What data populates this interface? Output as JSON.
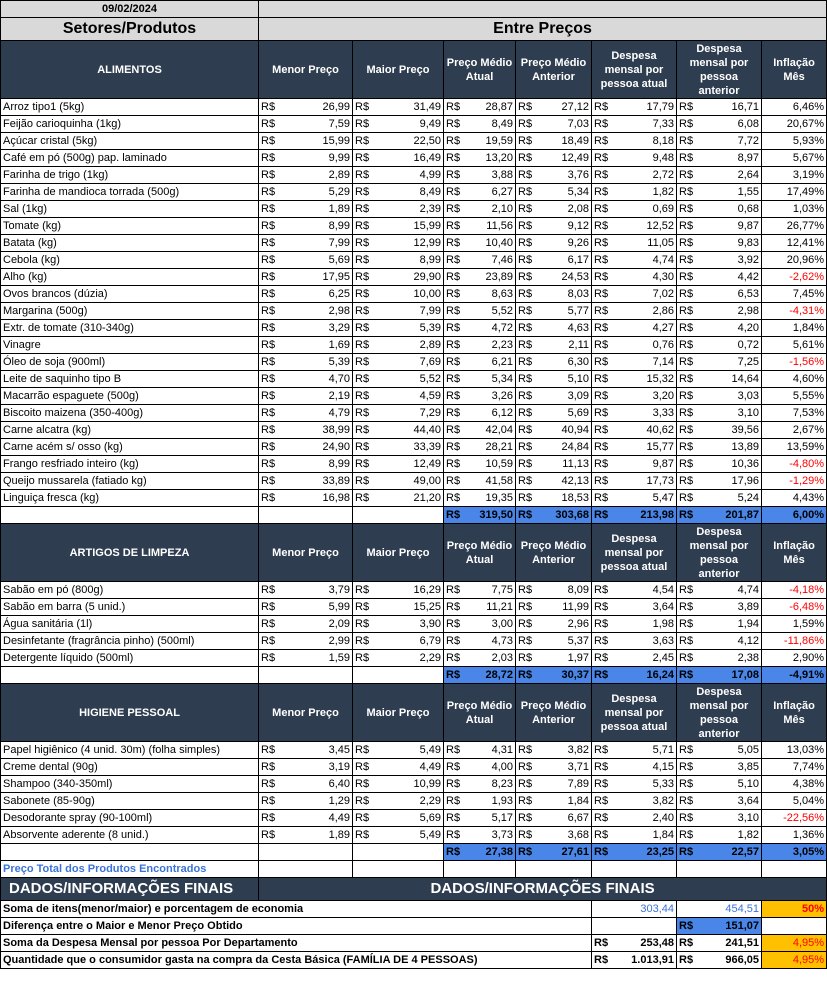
{
  "date": "09/02/2024",
  "titles": {
    "left": "Setores/Produtos",
    "right": "Entre Preços"
  },
  "headers": [
    "Menor Preço",
    "Maior Preço",
    "Preço Médio Atual",
    "Preço Médio Anterior",
    "Despesa mensal por pessoa atual",
    "Despesa mensal por pessoa anterior",
    "Inflação Mês"
  ],
  "currency": "R$",
  "sections": [
    {
      "name": "ALIMENTOS",
      "rows": [
        [
          "Arroz tipo1 (5kg)",
          "26,99",
          "31,49",
          "28,87",
          "27,12",
          "17,79",
          "16,71",
          "6,46%"
        ],
        [
          "Feijão carioquinha (1kg)",
          "7,59",
          "9,49",
          "8,49",
          "7,03",
          "7,33",
          "6,08",
          "20,67%"
        ],
        [
          "Açúcar cristal (5kg)",
          "15,99",
          "22,50",
          "19,59",
          "18,49",
          "8,18",
          "7,72",
          "5,93%"
        ],
        [
          "Café em pó (500g) pap. laminado",
          "9,99",
          "16,49",
          "13,20",
          "12,49",
          "9,48",
          "8,97",
          "5,67%"
        ],
        [
          "Farinha de trigo (1kg)",
          "2,89",
          "4,99",
          "3,88",
          "3,76",
          "2,72",
          "2,64",
          "3,19%"
        ],
        [
          "Farinha de mandioca torrada (500g)",
          "5,29",
          "8,49",
          "6,27",
          "5,34",
          "1,82",
          "1,55",
          "17,49%"
        ],
        [
          "Sal (1kg)",
          "1,89",
          "2,39",
          "2,10",
          "2,08",
          "0,69",
          "0,68",
          "1,03%"
        ],
        [
          "Tomate (kg)",
          "8,99",
          "15,99",
          "11,56",
          "9,12",
          "12,52",
          "9,87",
          "26,77%"
        ],
        [
          "Batata (kg)",
          "7,99",
          "12,99",
          "10,40",
          "9,26",
          "11,05",
          "9,83",
          "12,41%"
        ],
        [
          "Cebola (kg)",
          "5,69",
          "8,99",
          "7,46",
          "6,17",
          "4,74",
          "3,92",
          "20,96%"
        ],
        [
          "Alho (kg)",
          "17,95",
          "29,90",
          "23,89",
          "24,53",
          "4,30",
          "4,42",
          "-2,62%"
        ],
        [
          "Ovos brancos (dúzia)",
          "6,25",
          "10,00",
          "8,63",
          "8,03",
          "7,02",
          "6,53",
          "7,45%"
        ],
        [
          "Margarina (500g)",
          "2,98",
          "7,99",
          "5,52",
          "5,77",
          "2,86",
          "2,98",
          "-4,31%"
        ],
        [
          "Extr. de tomate (310-340g)",
          "3,29",
          "5,39",
          "4,72",
          "4,63",
          "4,27",
          "4,20",
          "1,84%"
        ],
        [
          "Vinagre",
          "1,69",
          "2,89",
          "2,23",
          "2,11",
          "0,76",
          "0,72",
          "5,61%"
        ],
        [
          "Óleo de soja (900ml)",
          "5,39",
          "7,69",
          "6,21",
          "6,30",
          "7,14",
          "7,25",
          "-1,56%"
        ],
        [
          "Leite de saquinho tipo B",
          "4,70",
          "5,52",
          "5,34",
          "5,10",
          "15,32",
          "14,64",
          "4,60%"
        ],
        [
          "Macarrão espaguete (500g)",
          "2,19",
          "4,59",
          "3,26",
          "3,09",
          "3,20",
          "3,03",
          "5,55%"
        ],
        [
          "Biscoito maizena (350-400g)",
          "4,79",
          "7,29",
          "6,12",
          "5,69",
          "3,33",
          "3,10",
          "7,53%"
        ],
        [
          "Carne alcatra (kg)",
          "38,99",
          "44,40",
          "42,04",
          "40,94",
          "40,62",
          "39,56",
          "2,67%"
        ],
        [
          "Carne acém s/ osso (kg)",
          "24,90",
          "33,39",
          "28,21",
          "24,84",
          "15,77",
          "13,89",
          "13,59%"
        ],
        [
          "Frango resfriado inteiro (kg)",
          "8,99",
          "12,49",
          "10,59",
          "11,13",
          "9,87",
          "10,36",
          "-4,80%"
        ],
        [
          "Queijo mussarela (fatiado kg)",
          "33,89",
          "49,00",
          "41,58",
          "42,13",
          "17,73",
          "17,96",
          "-1,29%"
        ],
        [
          "Linguiça fresca (kg)",
          "16,98",
          "21,20",
          "19,35",
          "18,53",
          "5,47",
          "5,24",
          "4,43%"
        ]
      ],
      "totals": [
        "319,50",
        "303,68",
        "213,98",
        "201,87",
        "6,00%"
      ]
    },
    {
      "name": "ARTIGOS DE LIMPEZA",
      "rows": [
        [
          "Sabão em pó (800g)",
          "3,79",
          "16,29",
          "7,75",
          "8,09",
          "4,54",
          "4,74",
          "-4,18%"
        ],
        [
          "Sabão em barra (5 unid.)",
          "5,99",
          "15,25",
          "11,21",
          "11,99",
          "3,64",
          "3,89",
          "-6,48%"
        ],
        [
          "Água sanitária (1l)",
          "2,09",
          "3,90",
          "3,00",
          "2,96",
          "1,98",
          "1,94",
          "1,59%"
        ],
        [
          "Desinfetante (fragrância pinho) (500ml)",
          "2,99",
          "6,79",
          "4,73",
          "5,37",
          "3,63",
          "4,12",
          "-11,86%"
        ],
        [
          "Detergente líquido (500ml)",
          "1,59",
          "2,29",
          "2,03",
          "1,97",
          "2,45",
          "2,38",
          "2,90%"
        ]
      ],
      "totals": [
        "28,72",
        "30,37",
        "16,24",
        "17,08",
        "-4,91%"
      ]
    },
    {
      "name": "HIGIENE PESSOAL",
      "rows": [
        [
          "Papel higiênico (4 unid. 30m) (folha simples)",
          "3,45",
          "5,49",
          "4,31",
          "3,82",
          "5,71",
          "5,05",
          "13,03%"
        ],
        [
          "Creme dental (90g)",
          "3,19",
          "4,49",
          "4,00",
          "3,71",
          "4,15",
          "3,85",
          "7,74%"
        ],
        [
          "Shampoo (340-350ml)",
          "6,40",
          "10,99",
          "8,23",
          "7,89",
          "5,33",
          "5,10",
          "4,38%"
        ],
        [
          "Sabonete (85-90g)",
          "1,29",
          "2,29",
          "1,93",
          "1,84",
          "3,82",
          "3,64",
          "5,04%"
        ],
        [
          "Desodorante spray (90-100ml)",
          "4,49",
          "5,69",
          "5,17",
          "6,67",
          "2,40",
          "3,10",
          "-22,56%"
        ],
        [
          "Absorvente aderente (8 unid.)",
          "1,89",
          "5,49",
          "3,73",
          "3,68",
          "1,84",
          "1,82",
          "1,36%"
        ]
      ],
      "totals": [
        "27,38",
        "27,61",
        "23,25",
        "22,57",
        "3,05%"
      ]
    }
  ],
  "footer": {
    "price_total_label": "Preço Total dos Produtos Encontrados",
    "band_left": "DADOS/INFORMAÇÕES FINAIS",
    "band_right": "DADOS/INFORMAÇÕES FINAIS",
    "rows": [
      {
        "label": "Soma de itens(menor/maior) e porcentagem de economia",
        "v1": "303,44",
        "v2": "454,51",
        "pct": "50%"
      },
      {
        "label": "Diferença entre o Maior e Menor Preço Obtido",
        "v2": "151,07"
      },
      {
        "label": "Soma da Despesa Mensal por pessoa Por Departamento",
        "v1": "253,48",
        "v2": "241,51",
        "pct": "4,95%"
      },
      {
        "label": "Quantidade que o consumidor gasta na compra da Cesta Básica (FAMÍLIA DE 4 PESSOAS)",
        "v1": "1.013,91",
        "v2": "966,05",
        "pct": "4,95%"
      }
    ]
  }
}
